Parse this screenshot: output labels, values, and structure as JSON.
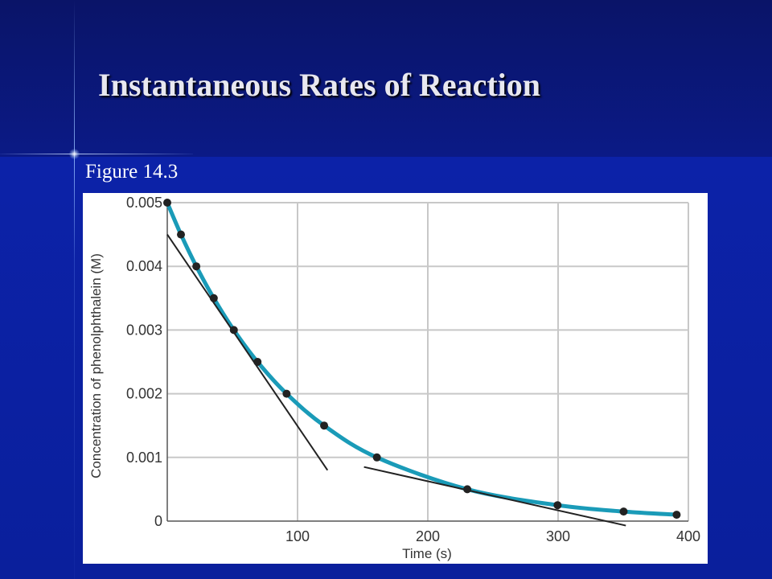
{
  "slide": {
    "title": "Instantaneous Rates of Reaction",
    "figure_label": "Figure 14.3"
  },
  "colors": {
    "curve": "#1a9bb8",
    "point": "#222222",
    "tangent": "#222222",
    "grid": "#c8c8c8"
  },
  "chart_data": {
    "type": "line",
    "title": "",
    "xlabel": "Time (s)",
    "ylabel": "Concentration of phenolphthalein (M)",
    "xlim": [
      0,
      400
    ],
    "ylim": [
      0,
      0.005
    ],
    "x_ticks": [
      100,
      200,
      300,
      400
    ],
    "x_tick_labels": [
      "100",
      "200",
      "300",
      "400"
    ],
    "y_ticks": [
      0,
      0.001,
      0.002,
      0.003,
      0.004,
      0.005
    ],
    "y_tick_labels": [
      "0",
      "0.001",
      "0.002",
      "0.003",
      "0.004",
      "0.005"
    ],
    "grid": true,
    "series": [
      {
        "points": [
          {
            "x": 0,
            "y": 0.005
          },
          {
            "x": 10.5,
            "y": 0.0045
          },
          {
            "x": 22.3,
            "y": 0.004
          },
          {
            "x": 35.7,
            "y": 0.0035
          },
          {
            "x": 51.1,
            "y": 0.003
          },
          {
            "x": 69.3,
            "y": 0.0025
          },
          {
            "x": 91.6,
            "y": 0.002
          },
          {
            "x": 120.4,
            "y": 0.0015
          },
          {
            "x": 160.9,
            "y": 0.001
          },
          {
            "x": 230.3,
            "y": 0.0005
          },
          {
            "x": 299.6,
            "y": 0.00025
          },
          {
            "x": 350.3,
            "y": 0.00015
          },
          {
            "x": 391.0,
            "y": 0.0001
          }
        ]
      }
    ],
    "tangent_lines": [
      {
        "x1": 0,
        "y1": 0.0045,
        "x2": 123,
        "y2": 0.0008
      },
      {
        "x1": 151,
        "y1": 0.00085,
        "x2": 352,
        "y2": -7e-05
      }
    ]
  }
}
